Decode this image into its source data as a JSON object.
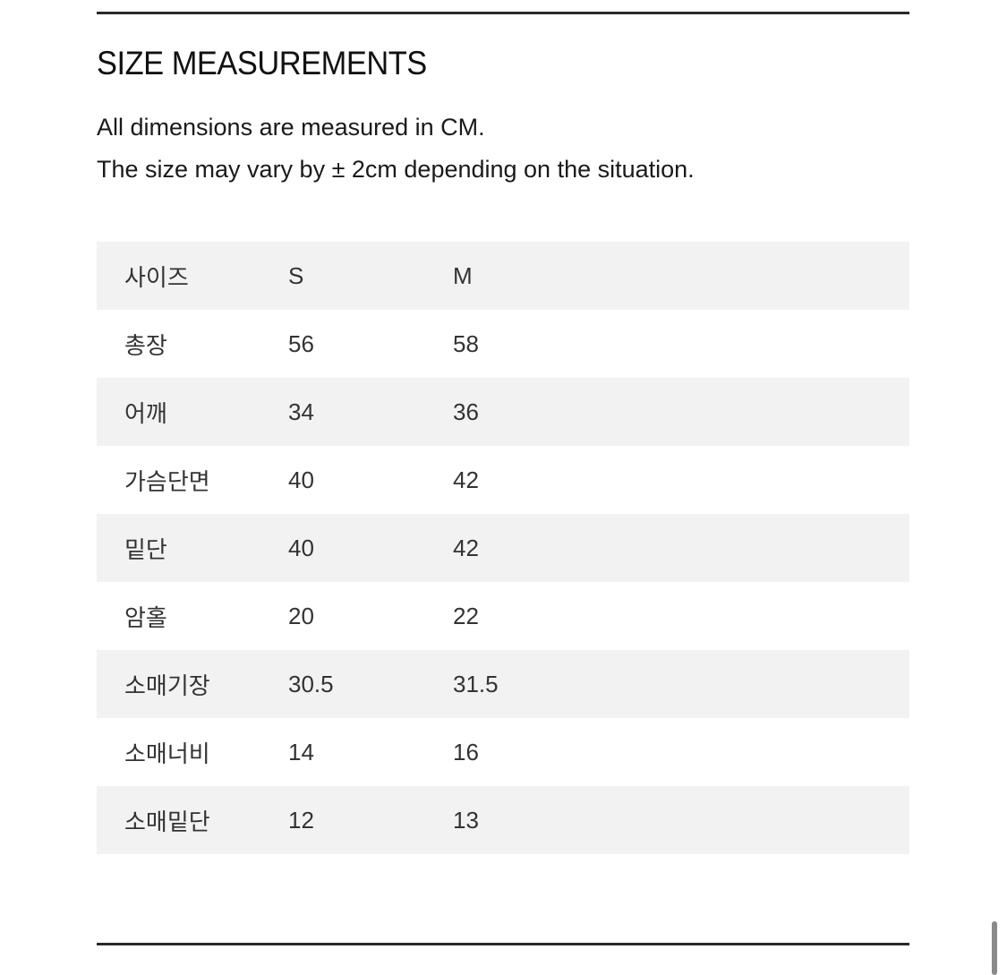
{
  "title": "SIZE MEASUREMENTS",
  "notes": [
    "All dimensions are measured in CM.",
    "The size may vary by ± 2cm depending on the situation."
  ],
  "table": {
    "header": [
      "사이즈",
      "S",
      "M"
    ],
    "rows": [
      [
        "총장",
        "56",
        "58"
      ],
      [
        "어깨",
        "34",
        "36"
      ],
      [
        "가슴단면",
        "40",
        "42"
      ],
      [
        "밑단",
        "40",
        "42"
      ],
      [
        "암홀",
        "20",
        "22"
      ],
      [
        "소매기장",
        "30.5",
        "31.5"
      ],
      [
        "소매너비",
        "14",
        "16"
      ],
      [
        "소매밑단",
        "12",
        "13"
      ]
    ]
  }
}
